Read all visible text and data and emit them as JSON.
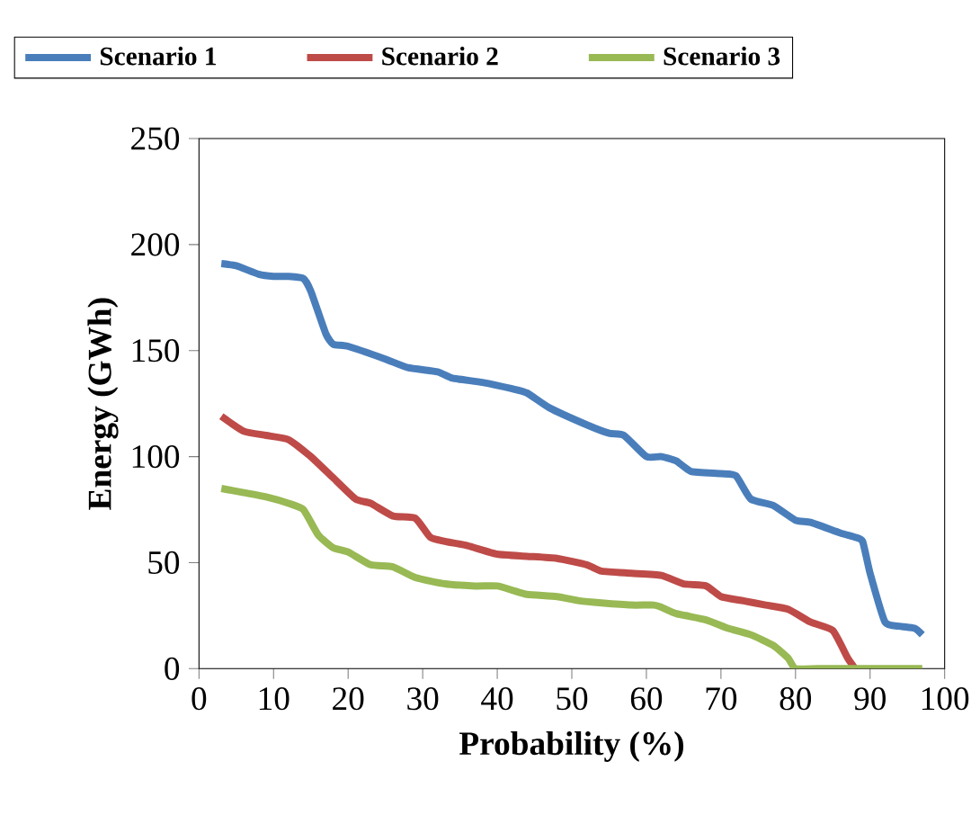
{
  "chart_data": {
    "type": "line",
    "xlabel": "Probability (%)",
    "ylabel": "Energy (GWh)",
    "xlim": [
      0,
      100
    ],
    "ylim": [
      0,
      250
    ],
    "xticks": [
      0,
      10,
      20,
      30,
      40,
      50,
      60,
      70,
      80,
      90,
      100
    ],
    "yticks": [
      0,
      50,
      100,
      150,
      200,
      250
    ],
    "legend": "top",
    "grid": false,
    "marker": "none",
    "line_style": "solid",
    "series": [
      {
        "name": "Scenario 1",
        "color": "#4a7ebb",
        "x": [
          3,
          5,
          8,
          10,
          12,
          14,
          15,
          17,
          18,
          20,
          25,
          28,
          32,
          34,
          38,
          42,
          44,
          47,
          52,
          55,
          57,
          60,
          62,
          64,
          66,
          70,
          72,
          74,
          77,
          80,
          82,
          86,
          88,
          89,
          90,
          92,
          94,
          96,
          97
        ],
        "values": [
          191,
          190,
          186,
          185,
          185,
          184,
          178,
          158,
          153,
          152,
          146,
          142,
          140,
          137,
          135,
          132,
          130,
          123,
          115,
          111,
          110,
          100,
          100,
          98,
          93,
          92,
          91,
          80,
          77,
          70,
          69,
          64,
          62,
          60,
          45,
          22,
          20,
          19,
          16
        ]
      },
      {
        "name": "Scenario 2",
        "color": "#be4b48",
        "x": [
          3,
          6,
          9,
          12,
          15,
          18,
          21,
          23,
          26,
          29,
          31,
          33,
          36,
          40,
          44,
          48,
          52,
          54,
          58,
          62,
          65,
          68,
          70,
          73,
          76,
          79,
          82,
          85,
          87,
          88
        ],
        "values": [
          119,
          112,
          110,
          108,
          100,
          90,
          80,
          78,
          72,
          71,
          62,
          60,
          58,
          54,
          53,
          52,
          49,
          46,
          45,
          44,
          40,
          39,
          34,
          32,
          30,
          28,
          22,
          18,
          5,
          0
        ]
      },
      {
        "name": "Scenario 3",
        "color": "#98b954",
        "x": [
          3,
          6,
          9,
          12,
          14,
          16,
          18,
          20,
          23,
          26,
          29,
          33,
          37,
          40,
          42,
          44,
          48,
          51,
          54,
          58,
          61,
          62,
          64,
          68,
          71,
          74,
          77,
          79,
          80,
          83,
          90,
          97
        ],
        "values": [
          85,
          83,
          81,
          78,
          75,
          63,
          57,
          55,
          49,
          48,
          43,
          40,
          39,
          39,
          37,
          35,
          34,
          32,
          31,
          30,
          30,
          29,
          26,
          23,
          19,
          16,
          11,
          5,
          0,
          0,
          0,
          0
        ]
      }
    ]
  }
}
